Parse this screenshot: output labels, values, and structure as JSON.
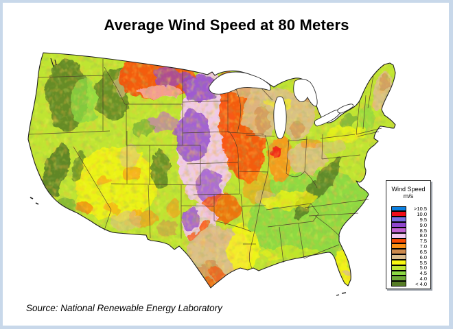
{
  "title": "Average Wind Speed at 80 Meters",
  "source_note": "Source: National Renewable Energy Laboratory",
  "colors": {
    "frame": "#c8d8ea",
    "background": "#ffffff",
    "legend_shadow": "#9aa0a8",
    "map_outline": "#1f1f1f",
    "state_border": "#4a3a28"
  },
  "map": {
    "name": "us-average-wind-speed-80m",
    "type": "thematic-raster-map",
    "region": "Contiguous United States"
  },
  "legend": {
    "title_line1": "Wind Speed",
    "title_line2": "m/s",
    "entries": [
      {
        "label": ">10.5",
        "color": "#0c80e1"
      },
      {
        "label": "10.0",
        "color": "#f00c18"
      },
      {
        "label": "9.5",
        "color": "#7a6ee0"
      },
      {
        "label": "9.0",
        "color": "#9047cd"
      },
      {
        "label": "8.5",
        "color": "#c263d2"
      },
      {
        "label": "8.0",
        "color": "#f2c8f0"
      },
      {
        "label": "7.5",
        "color": "#fa4d02"
      },
      {
        "label": "7.0",
        "color": "#fb9016"
      },
      {
        "label": "6.5",
        "color": "#cd8a4c"
      },
      {
        "label": "6.0",
        "color": "#dcbe8e"
      },
      {
        "label": "5.5",
        "color": "#f9f711"
      },
      {
        "label": "5.0",
        "color": "#bfe533"
      },
      {
        "label": "4.5",
        "color": "#8cd943"
      },
      {
        "label": "4.0",
        "color": "#70ab37"
      },
      {
        "label": "< 4.0",
        "color": "#567c26"
      }
    ]
  }
}
